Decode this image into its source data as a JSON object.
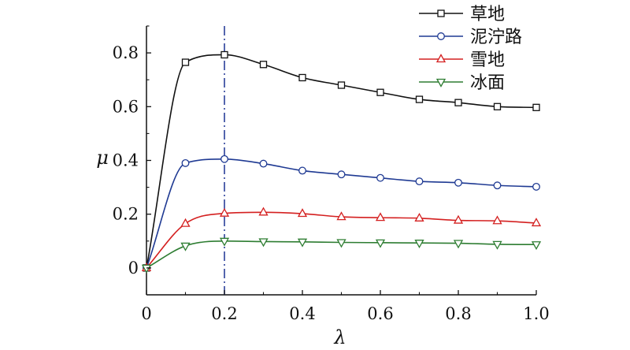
{
  "chart_data": {
    "type": "line",
    "title": "",
    "xlabel": "λ",
    "ylabel": "μ",
    "xlim": [
      0,
      1.0
    ],
    "ylim": [
      -0.1,
      0.9
    ],
    "x_ticks": [
      0,
      0.2,
      0.4,
      0.6,
      0.8,
      1.0
    ],
    "x_tick_labels": [
      "0",
      "0.2",
      "0.4",
      "0.6",
      "0.8",
      "1.0"
    ],
    "y_ticks": [
      0,
      0.2,
      0.4,
      0.6,
      0.8
    ],
    "y_tick_labels": [
      "0",
      "0.2",
      "0.4",
      "0.6",
      "0.8"
    ],
    "grid": false,
    "legend_position": "top-right",
    "reference_line": {
      "x": 0.2,
      "style": "dash-dot",
      "color": "#2a3f9a"
    },
    "series": [
      {
        "name": "草地",
        "color": "#111111",
        "marker": "square",
        "x": [
          0,
          0.1,
          0.2,
          0.3,
          0.4,
          0.5,
          0.6,
          0.7,
          0.8,
          0.9,
          1.0
        ],
        "y": [
          0,
          0.765,
          0.793,
          0.757,
          0.708,
          0.68,
          0.653,
          0.627,
          0.615,
          0.6,
          0.597
        ]
      },
      {
        "name": "泥泞路",
        "color": "#1f3a93",
        "marker": "circle",
        "x": [
          0,
          0.1,
          0.2,
          0.3,
          0.4,
          0.5,
          0.6,
          0.7,
          0.8,
          0.9,
          1.0
        ],
        "y": [
          0,
          0.39,
          0.405,
          0.388,
          0.362,
          0.348,
          0.335,
          0.322,
          0.317,
          0.307,
          0.302
        ]
      },
      {
        "name": "雪地",
        "color": "#d42020",
        "marker": "triangle-up",
        "x": [
          0,
          0.1,
          0.2,
          0.3,
          0.4,
          0.5,
          0.6,
          0.7,
          0.8,
          0.9,
          1.0
        ],
        "y": [
          0,
          0.165,
          0.203,
          0.207,
          0.202,
          0.19,
          0.187,
          0.185,
          0.177,
          0.175,
          0.167
        ]
      },
      {
        "name": "冰面",
        "color": "#2e7d32",
        "marker": "triangle-down",
        "x": [
          0,
          0.1,
          0.2,
          0.3,
          0.4,
          0.5,
          0.6,
          0.7,
          0.8,
          0.9,
          1.0
        ],
        "y": [
          0,
          0.082,
          0.1,
          0.098,
          0.097,
          0.095,
          0.094,
          0.093,
          0.092,
          0.088,
          0.087
        ]
      }
    ]
  }
}
